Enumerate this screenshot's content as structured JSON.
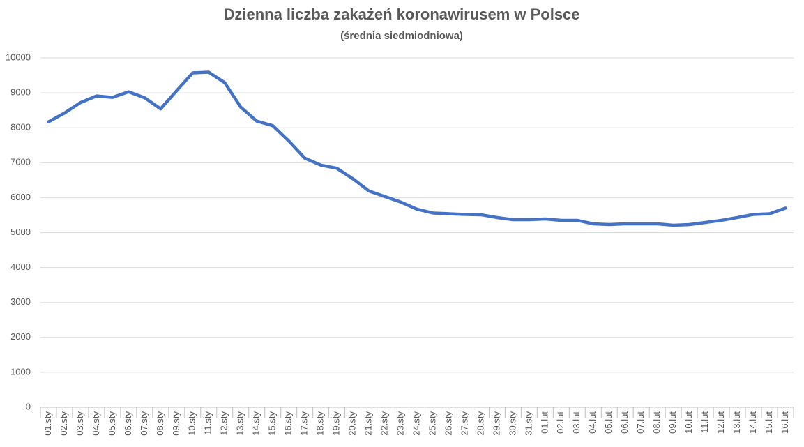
{
  "chart_data": {
    "type": "line",
    "title": "Dzienna liczba zakażeń koronawirusem w Polsce",
    "subtitle": "(średnia siedmiodniowa)",
    "categories": [
      "01.sty",
      "02.sty",
      "03.sty",
      "04.sty",
      "05.sty",
      "06.sty",
      "07.sty",
      "08.sty",
      "09.sty",
      "10.sty",
      "11.sty",
      "12.sty",
      "13.sty",
      "14.sty",
      "15.sty",
      "16.sty",
      "17.sty",
      "18.sty",
      "19.sty",
      "20.sty",
      "21.sty",
      "22.sty",
      "23.sty",
      "24.sty",
      "25.sty",
      "26.sty",
      "27.sty",
      "28.sty",
      "29.sty",
      "30.sty",
      "31.sty",
      "01.lut",
      "02.lut",
      "03.lut",
      "04.lut",
      "05.lut",
      "06.lut",
      "07.lut",
      "08.lut",
      "09.lut",
      "10.lut",
      "11.lut",
      "12.lut",
      "13.lut",
      "14.lut",
      "15.lut",
      "16.lut"
    ],
    "values": [
      8170,
      8420,
      8720,
      8910,
      8870,
      9030,
      8860,
      8540,
      9060,
      9570,
      9590,
      9290,
      8590,
      8190,
      8060,
      7620,
      7130,
      6930,
      6840,
      6540,
      6190,
      6030,
      5870,
      5670,
      5560,
      5540,
      5520,
      5510,
      5430,
      5370,
      5370,
      5390,
      5350,
      5350,
      5250,
      5230,
      5250,
      5250,
      5250,
      5210,
      5230,
      5290,
      5350,
      5430,
      5520,
      5540,
      5700
    ],
    "color": "#4472c4",
    "ylim": [
      0,
      10000
    ],
    "yticks": [
      0,
      1000,
      2000,
      3000,
      4000,
      5000,
      6000,
      7000,
      8000,
      9000,
      10000
    ],
    "grid": true
  }
}
